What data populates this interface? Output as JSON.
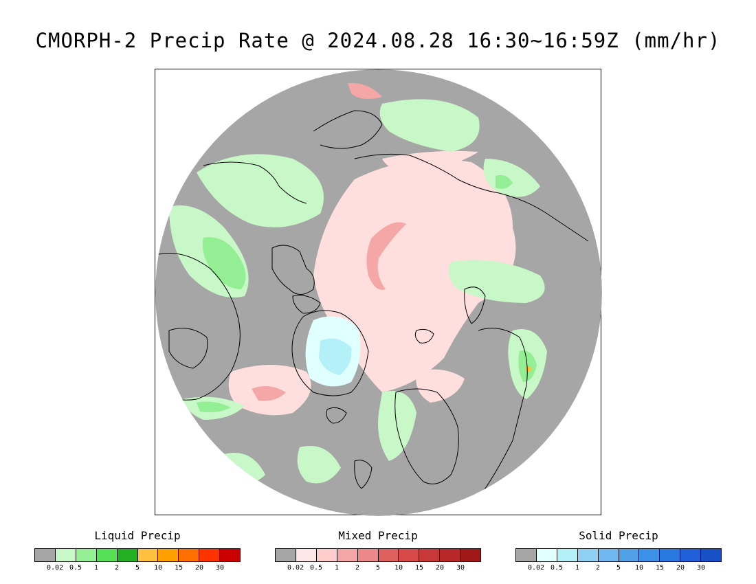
{
  "title": "CMORPH-2 Precip Rate @ 2024.08.28 16:30~16:59Z (mm/hr)",
  "map": {
    "projection": "polar stereographic",
    "background_color": "#a6a6a6",
    "precip_regions": [
      {
        "type": "mixed",
        "level": "0.02"
      },
      {
        "type": "mixed",
        "level": "1"
      },
      {
        "type": "solid",
        "level": "0.02"
      },
      {
        "type": "solid",
        "level": "0.5"
      },
      {
        "type": "liquid",
        "level": "0.02"
      },
      {
        "type": "liquid",
        "level": "1"
      },
      {
        "type": "liquid",
        "level": "2"
      },
      {
        "type": "liquid",
        "level": "10"
      }
    ]
  },
  "legends": [
    {
      "title": "Liquid Precip",
      "colors": [
        "#a6a6a6",
        "#c8f7c8",
        "#94ee94",
        "#55e055",
        "#22b022",
        "#ffc040",
        "#ffa000",
        "#ff7000",
        "#ff3300",
        "#cc0000"
      ],
      "ticks": [
        "0.02",
        "0.5",
        "1",
        "2",
        "5",
        "10",
        "15",
        "20",
        "30"
      ]
    },
    {
      "title": "Mixed Precip",
      "colors": [
        "#a6a6a6",
        "#ffe6e6",
        "#ffcccc",
        "#f5a6a6",
        "#ee8888",
        "#e06060",
        "#d84a4a",
        "#c83838",
        "#b82828",
        "#a01818"
      ],
      "ticks": [
        "0.02",
        "0.5",
        "1",
        "2",
        "5",
        "10",
        "15",
        "20",
        "30"
      ]
    },
    {
      "title": "Solid Precip",
      "colors": [
        "#a6a6a6",
        "#e0ffff",
        "#b4f0f8",
        "#90d0f5",
        "#70b8f0",
        "#50a0e8",
        "#3c90e8",
        "#2878e0",
        "#2060d8",
        "#1850c8"
      ],
      "ticks": [
        "0.02",
        "0.5",
        "1",
        "2",
        "5",
        "10",
        "15",
        "20",
        "30"
      ]
    }
  ]
}
